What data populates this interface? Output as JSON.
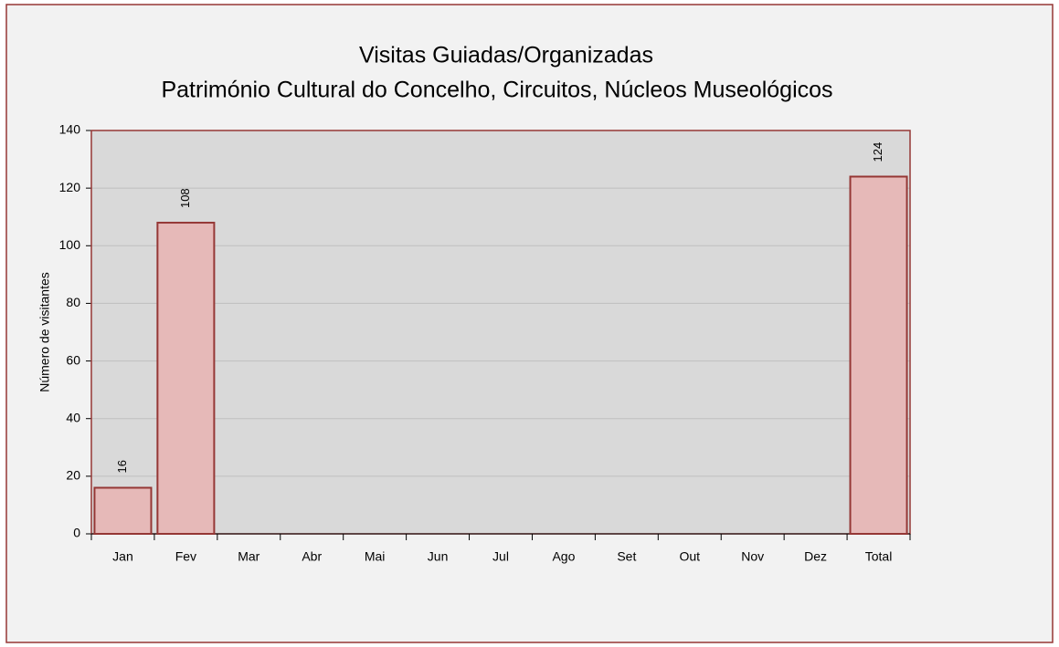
{
  "chart_data": {
    "type": "bar",
    "title": "Visitas Guiadas/Organizadas",
    "subtitle": "Património Cultural do Concelho, Circuitos, Núcleos Museológicos",
    "y_label": "Número de visitantes",
    "categories": [
      "Jan",
      "Fev",
      "Mar",
      "Abr",
      "Mai",
      "Jun",
      "Jul",
      "Ago",
      "Set",
      "Out",
      "Nov",
      "Dez",
      "Total"
    ],
    "values": [
      16,
      108,
      null,
      null,
      null,
      null,
      null,
      null,
      null,
      null,
      null,
      null,
      124
    ],
    "color": "#e6b9b8",
    "ylim": [
      0,
      140
    ],
    "yticks": [
      0,
      20,
      40,
      60,
      80,
      100,
      120,
      140
    ],
    "grid": true
  }
}
